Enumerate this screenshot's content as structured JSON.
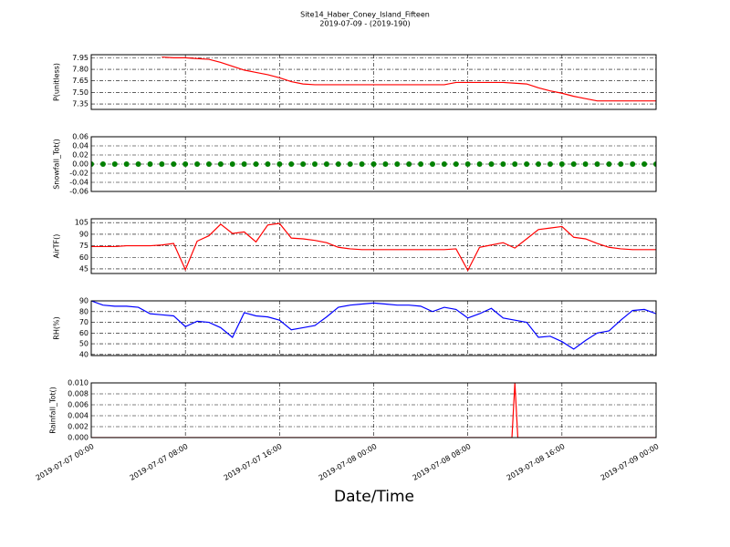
{
  "title": "Site14_Haber_Coney_Island_Fifteen",
  "subtitle": "2019-07-09 - (2019-190)",
  "xlabel": "Date/Time",
  "xlim": [
    "2019-07-07 00:00",
    "2019-07-09 00:00"
  ],
  "xticks": [
    "2019-07-07 00:00",
    "2019-07-07 08:00",
    "2019-07-07 16:00",
    "2019-07-08 00:00",
    "2019-07-08 08:00",
    "2019-07-08 16:00",
    "2019-07-09 00:00"
  ],
  "grid": true,
  "x": [
    "2019-07-07 00:00",
    "2019-07-07 01:00",
    "2019-07-07 02:00",
    "2019-07-07 03:00",
    "2019-07-07 04:00",
    "2019-07-07 05:00",
    "2019-07-07 06:00",
    "2019-07-07 07:00",
    "2019-07-07 08:00",
    "2019-07-07 09:00",
    "2019-07-07 10:00",
    "2019-07-07 11:00",
    "2019-07-07 12:00",
    "2019-07-07 13:00",
    "2019-07-07 14:00",
    "2019-07-07 15:00",
    "2019-07-07 16:00",
    "2019-07-07 17:00",
    "2019-07-07 18:00",
    "2019-07-07 19:00",
    "2019-07-07 20:00",
    "2019-07-07 21:00",
    "2019-07-07 22:00",
    "2019-07-07 23:00",
    "2019-07-08 00:00",
    "2019-07-08 01:00",
    "2019-07-08 02:00",
    "2019-07-08 03:00",
    "2019-07-08 04:00",
    "2019-07-08 05:00",
    "2019-07-08 06:00",
    "2019-07-08 07:00",
    "2019-07-08 08:00",
    "2019-07-08 09:00",
    "2019-07-08 10:00",
    "2019-07-08 11:00",
    "2019-07-08 12:00",
    "2019-07-08 13:00",
    "2019-07-08 14:00",
    "2019-07-08 15:00",
    "2019-07-08 16:00",
    "2019-07-08 17:00",
    "2019-07-08 18:00",
    "2019-07-08 19:00",
    "2019-07-08 20:00",
    "2019-07-08 21:00",
    "2019-07-08 22:00",
    "2019-07-08 23:00",
    "2019-07-09 00:00"
  ],
  "chart_data": [
    {
      "type": "line",
      "ylabel": "P(unitless)",
      "ylim": [
        7.28,
        7.99
      ],
      "yticks": [
        7.35,
        {
          "value": 7.5,
          "label": "7.50"
        },
        7.65,
        {
          "value": 7.8,
          "label": "7.80"
        },
        7.95
      ],
      "series": [
        {
          "name": "P",
          "color": "#ff0000",
          "values": [
            null,
            null,
            null,
            null,
            null,
            null,
            7.96,
            7.95,
            7.95,
            7.94,
            7.93,
            7.89,
            7.84,
            7.79,
            7.76,
            7.73,
            7.69,
            7.64,
            7.61,
            7.6,
            7.6,
            7.6,
            7.6,
            7.6,
            7.6,
            7.6,
            7.6,
            7.6,
            7.6,
            7.6,
            7.6,
            7.63,
            7.63,
            7.63,
            7.63,
            7.63,
            7.62,
            7.61,
            7.56,
            7.52,
            7.49,
            7.45,
            7.42,
            7.39,
            7.39,
            7.39,
            7.39,
            7.39,
            7.39
          ]
        }
      ]
    },
    {
      "type": "scatter",
      "ylabel": "Snowfall_Tot()",
      "ylim": [
        -0.06,
        0.06
      ],
      "yticks": [
        -0.06,
        -0.04,
        -0.02,
        {
          "value": 0,
          "label": "0.00"
        },
        0.02,
        0.04,
        0.06
      ],
      "series": [
        {
          "name": "Snowfall_Tot",
          "color": "#008000",
          "values": [
            0,
            0,
            0,
            0,
            0,
            0,
            0,
            0,
            0,
            0,
            0,
            0,
            0,
            0,
            0,
            0,
            0,
            0,
            0,
            0,
            0,
            0,
            0,
            0,
            0,
            0,
            0,
            0,
            0,
            0,
            0,
            0,
            0,
            0,
            0,
            0,
            0,
            0,
            0,
            0,
            0,
            0,
            0,
            0,
            0,
            0,
            0,
            0,
            0
          ]
        }
      ]
    },
    {
      "type": "line",
      "ylabel": "AirTF()",
      "ylim": [
        39,
        110
      ],
      "yticks": [
        45,
        60,
        75,
        90,
        105
      ],
      "series": [
        {
          "name": "AirTF",
          "color": "#ff0000",
          "values": [
            74,
            74,
            74,
            75,
            75,
            75,
            76,
            78,
            44,
            81,
            88,
            103,
            91,
            93,
            80,
            102,
            104,
            85,
            84,
            82,
            79,
            73,
            71,
            70,
            70,
            70,
            70,
            70,
            70,
            70,
            70,
            71,
            43,
            73,
            76,
            79,
            72,
            84,
            96,
            98,
            100,
            86,
            84,
            78,
            73,
            71,
            70,
            70,
            70
          ]
        }
      ]
    },
    {
      "type": "line",
      "ylabel": "RH(%)",
      "ylim": [
        39,
        90
      ],
      "yticks": [
        40,
        50,
        60,
        70,
        80,
        90
      ],
      "series": [
        {
          "name": "RH",
          "color": "#0000ff",
          "values": [
            90,
            86,
            85,
            85,
            84,
            78,
            77,
            76,
            66,
            71,
            70,
            65,
            56,
            79,
            76,
            75,
            72,
            63,
            65,
            67,
            75,
            84,
            86,
            87,
            88,
            87,
            86,
            86,
            85,
            80,
            84,
            82,
            74,
            78,
            83,
            74,
            72,
            70,
            56,
            57,
            52,
            45,
            53,
            60,
            62,
            72,
            81,
            82,
            78
          ]
        }
      ]
    },
    {
      "type": "line",
      "ylabel": "Rainfall_Tot()",
      "ylim": [
        0,
        0.01
      ],
      "yticks": [
        {
          "value": 0,
          "label": "0.000"
        },
        {
          "value": 0.002,
          "label": "0.002"
        },
        {
          "value": 0.004,
          "label": "0.004"
        },
        {
          "value": 0.006,
          "label": "0.006"
        },
        {
          "value": 0.008,
          "label": "0.008"
        },
        {
          "value": 0.01,
          "label": "0.010"
        }
      ],
      "x": [
        "2019-07-07 00:00",
        "2019-07-08 11:45",
        "2019-07-08 12:00",
        "2019-07-08 12:15",
        "2019-07-09 00:00"
      ],
      "series": [
        {
          "name": "Rainfall_Tot",
          "color": "#ff0000",
          "values": [
            0,
            0,
            0.01,
            0,
            0
          ]
        }
      ]
    }
  ]
}
